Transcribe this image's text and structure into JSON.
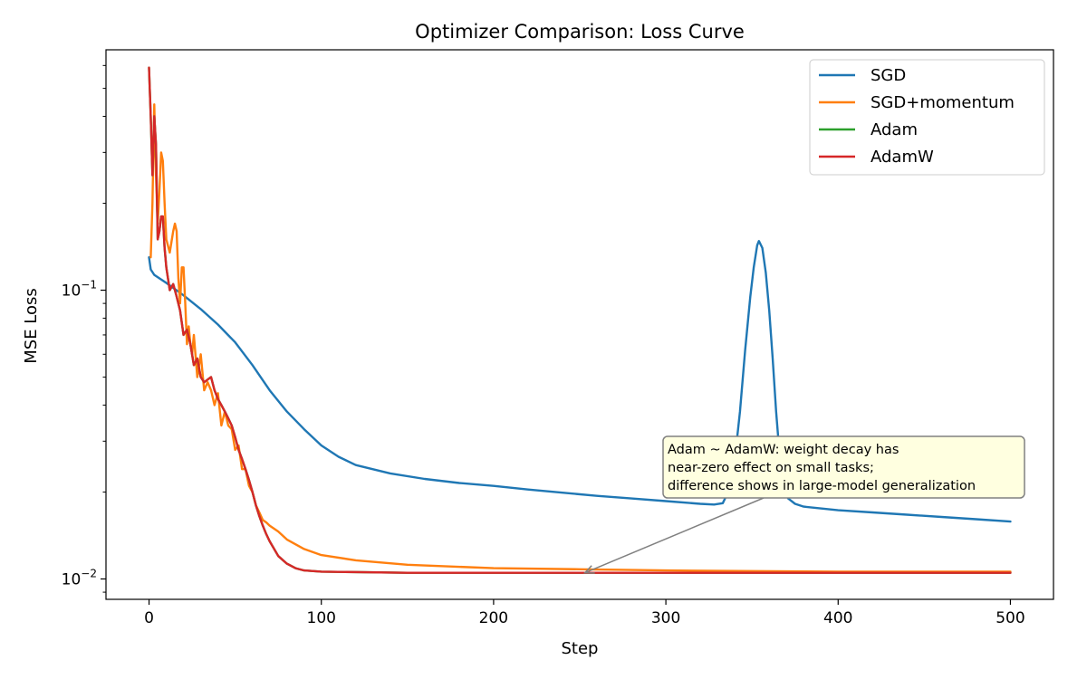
{
  "chart_data": {
    "type": "line",
    "title": "Optimizer Comparison: Loss Curve",
    "xlabel": "Step",
    "ylabel": "MSE Loss",
    "xlim": [
      -25,
      525
    ],
    "ylim": [
      0.0085,
      0.68
    ],
    "yscale": "log",
    "x_ticks": [
      0,
      100,
      200,
      300,
      400,
      500
    ],
    "y_major_ticks": [
      {
        "value": 0.01,
        "base": "10",
        "exp": "−2"
      },
      {
        "value": 0.1,
        "base": "10",
        "exp": "−1"
      }
    ],
    "grid": false,
    "legend_location": "upper right",
    "series": [
      {
        "name": "SGD",
        "color": "#1f77b4",
        "points": [
          [
            0,
            0.13
          ],
          [
            1,
            0.118
          ],
          [
            3,
            0.113
          ],
          [
            10,
            0.106
          ],
          [
            20,
            0.096
          ],
          [
            30,
            0.086
          ],
          [
            40,
            0.076
          ],
          [
            50,
            0.066
          ],
          [
            60,
            0.055
          ],
          [
            70,
            0.045
          ],
          [
            80,
            0.038
          ],
          [
            90,
            0.033
          ],
          [
            100,
            0.029
          ],
          [
            110,
            0.0265
          ],
          [
            120,
            0.0248
          ],
          [
            140,
            0.0232
          ],
          [
            160,
            0.0222
          ],
          [
            180,
            0.0215
          ],
          [
            200,
            0.021
          ],
          [
            220,
            0.0204
          ],
          [
            240,
            0.0199
          ],
          [
            260,
            0.0194
          ],
          [
            280,
            0.019
          ],
          [
            300,
            0.0186
          ],
          [
            320,
            0.0182
          ],
          [
            328,
            0.0181
          ],
          [
            333,
            0.0183
          ],
          [
            337,
            0.0205
          ],
          [
            340,
            0.026
          ],
          [
            343,
            0.038
          ],
          [
            346,
            0.062
          ],
          [
            349,
            0.095
          ],
          [
            351,
            0.12
          ],
          [
            353,
            0.143
          ],
          [
            354,
            0.148
          ],
          [
            356,
            0.14
          ],
          [
            358,
            0.115
          ],
          [
            360,
            0.085
          ],
          [
            362,
            0.058
          ],
          [
            364,
            0.038
          ],
          [
            366,
            0.027
          ],
          [
            368,
            0.0215
          ],
          [
            371,
            0.019
          ],
          [
            375,
            0.0182
          ],
          [
            380,
            0.0178
          ],
          [
            400,
            0.0173
          ],
          [
            420,
            0.017
          ],
          [
            440,
            0.0167
          ],
          [
            460,
            0.0164
          ],
          [
            480,
            0.0161
          ],
          [
            500,
            0.0158
          ]
        ]
      },
      {
        "name": "SGD+momentum",
        "color": "#ff7f0e",
        "points": [
          [
            1,
            0.13
          ],
          [
            2,
            0.2
          ],
          [
            3,
            0.44
          ],
          [
            4,
            0.25
          ],
          [
            5,
            0.17
          ],
          [
            6,
            0.22
          ],
          [
            7,
            0.3
          ],
          [
            8,
            0.28
          ],
          [
            9,
            0.2
          ],
          [
            10,
            0.15
          ],
          [
            12,
            0.135
          ],
          [
            14,
            0.16
          ],
          [
            15,
            0.17
          ],
          [
            16,
            0.16
          ],
          [
            17,
            0.11
          ],
          [
            18,
            0.09
          ],
          [
            19,
            0.12
          ],
          [
            20,
            0.12
          ],
          [
            21,
            0.09
          ],
          [
            22,
            0.065
          ],
          [
            23,
            0.075
          ],
          [
            24,
            0.065
          ],
          [
            25,
            0.06
          ],
          [
            26,
            0.07
          ],
          [
            28,
            0.05
          ],
          [
            30,
            0.06
          ],
          [
            32,
            0.045
          ],
          [
            34,
            0.048
          ],
          [
            36,
            0.045
          ],
          [
            38,
            0.04
          ],
          [
            40,
            0.044
          ],
          [
            42,
            0.034
          ],
          [
            44,
            0.038
          ],
          [
            46,
            0.034
          ],
          [
            48,
            0.033
          ],
          [
            50,
            0.028
          ],
          [
            52,
            0.029
          ],
          [
            54,
            0.024
          ],
          [
            56,
            0.024
          ],
          [
            58,
            0.021
          ],
          [
            60,
            0.02
          ],
          [
            62,
            0.018
          ],
          [
            64,
            0.017
          ],
          [
            66,
            0.016
          ],
          [
            68,
            0.0157
          ],
          [
            70,
            0.0153
          ],
          [
            75,
            0.0146
          ],
          [
            80,
            0.0137
          ],
          [
            90,
            0.0127
          ],
          [
            100,
            0.0121
          ],
          [
            120,
            0.0116
          ],
          [
            150,
            0.0112
          ],
          [
            200,
            0.0109
          ],
          [
            250,
            0.0108
          ],
          [
            300,
            0.0107
          ],
          [
            400,
            0.0106
          ],
          [
            500,
            0.0106
          ]
        ]
      },
      {
        "name": "Adam",
        "color": "#2ca02c",
        "points": [
          [
            0,
            0.59
          ],
          [
            1,
            0.4
          ],
          [
            2,
            0.25
          ],
          [
            3,
            0.4
          ],
          [
            4,
            0.32
          ],
          [
            5,
            0.15
          ],
          [
            6,
            0.16
          ],
          [
            7,
            0.18
          ],
          [
            8,
            0.18
          ],
          [
            9,
            0.14
          ],
          [
            10,
            0.12
          ],
          [
            12,
            0.1
          ],
          [
            14,
            0.105
          ],
          [
            15,
            0.1
          ],
          [
            16,
            0.095
          ],
          [
            18,
            0.085
          ],
          [
            20,
            0.07
          ],
          [
            22,
            0.073
          ],
          [
            24,
            0.065
          ],
          [
            26,
            0.055
          ],
          [
            28,
            0.058
          ],
          [
            30,
            0.05
          ],
          [
            32,
            0.048
          ],
          [
            34,
            0.049
          ],
          [
            36,
            0.05
          ],
          [
            38,
            0.045
          ],
          [
            40,
            0.042
          ],
          [
            42,
            0.04
          ],
          [
            44,
            0.038
          ],
          [
            46,
            0.036
          ],
          [
            48,
            0.034
          ],
          [
            50,
            0.031
          ],
          [
            52,
            0.028
          ],
          [
            54,
            0.026
          ],
          [
            56,
            0.024
          ],
          [
            58,
            0.022
          ],
          [
            60,
            0.02
          ],
          [
            62,
            0.018
          ],
          [
            64,
            0.0165
          ],
          [
            66,
            0.0153
          ],
          [
            68,
            0.0143
          ],
          [
            70,
            0.0135
          ],
          [
            75,
            0.012
          ],
          [
            80,
            0.0113
          ],
          [
            85,
            0.0109
          ],
          [
            90,
            0.0107
          ],
          [
            100,
            0.0106
          ],
          [
            150,
            0.0105
          ],
          [
            200,
            0.0105
          ],
          [
            300,
            0.0105
          ],
          [
            400,
            0.0105
          ],
          [
            500,
            0.0105
          ]
        ]
      },
      {
        "name": "AdamW",
        "color": "#d62728",
        "points": [
          [
            0,
            0.59
          ],
          [
            1,
            0.4
          ],
          [
            2,
            0.25
          ],
          [
            3,
            0.4
          ],
          [
            4,
            0.32
          ],
          [
            5,
            0.15
          ],
          [
            6,
            0.16
          ],
          [
            7,
            0.18
          ],
          [
            8,
            0.18
          ],
          [
            9,
            0.14
          ],
          [
            10,
            0.12
          ],
          [
            12,
            0.1
          ],
          [
            14,
            0.105
          ],
          [
            15,
            0.1
          ],
          [
            16,
            0.095
          ],
          [
            18,
            0.085
          ],
          [
            20,
            0.07
          ],
          [
            22,
            0.073
          ],
          [
            24,
            0.065
          ],
          [
            26,
            0.055
          ],
          [
            28,
            0.058
          ],
          [
            30,
            0.05
          ],
          [
            32,
            0.048
          ],
          [
            34,
            0.049
          ],
          [
            36,
            0.05
          ],
          [
            38,
            0.045
          ],
          [
            40,
            0.042
          ],
          [
            42,
            0.04
          ],
          [
            44,
            0.038
          ],
          [
            46,
            0.036
          ],
          [
            48,
            0.034
          ],
          [
            50,
            0.031
          ],
          [
            52,
            0.028
          ],
          [
            54,
            0.026
          ],
          [
            56,
            0.024
          ],
          [
            58,
            0.022
          ],
          [
            60,
            0.02
          ],
          [
            62,
            0.018
          ],
          [
            64,
            0.0165
          ],
          [
            66,
            0.0153
          ],
          [
            68,
            0.0143
          ],
          [
            70,
            0.0135
          ],
          [
            75,
            0.012
          ],
          [
            80,
            0.0113
          ],
          [
            85,
            0.0109
          ],
          [
            90,
            0.0107
          ],
          [
            100,
            0.0106
          ],
          [
            150,
            0.0105
          ],
          [
            200,
            0.0105
          ],
          [
            300,
            0.0105
          ],
          [
            400,
            0.0105
          ],
          [
            500,
            0.0105
          ]
        ]
      }
    ],
    "annotation": {
      "lines": [
        "Adam ~ AdamW: weight decay has",
        "near-zero effect on small tasks;",
        "difference shows in large-model generalization"
      ],
      "box_color": "#ffffe0",
      "border_color": "#808080",
      "arrow_color": "#808080",
      "arrow_target": [
        253,
        0.0105
      ]
    }
  }
}
